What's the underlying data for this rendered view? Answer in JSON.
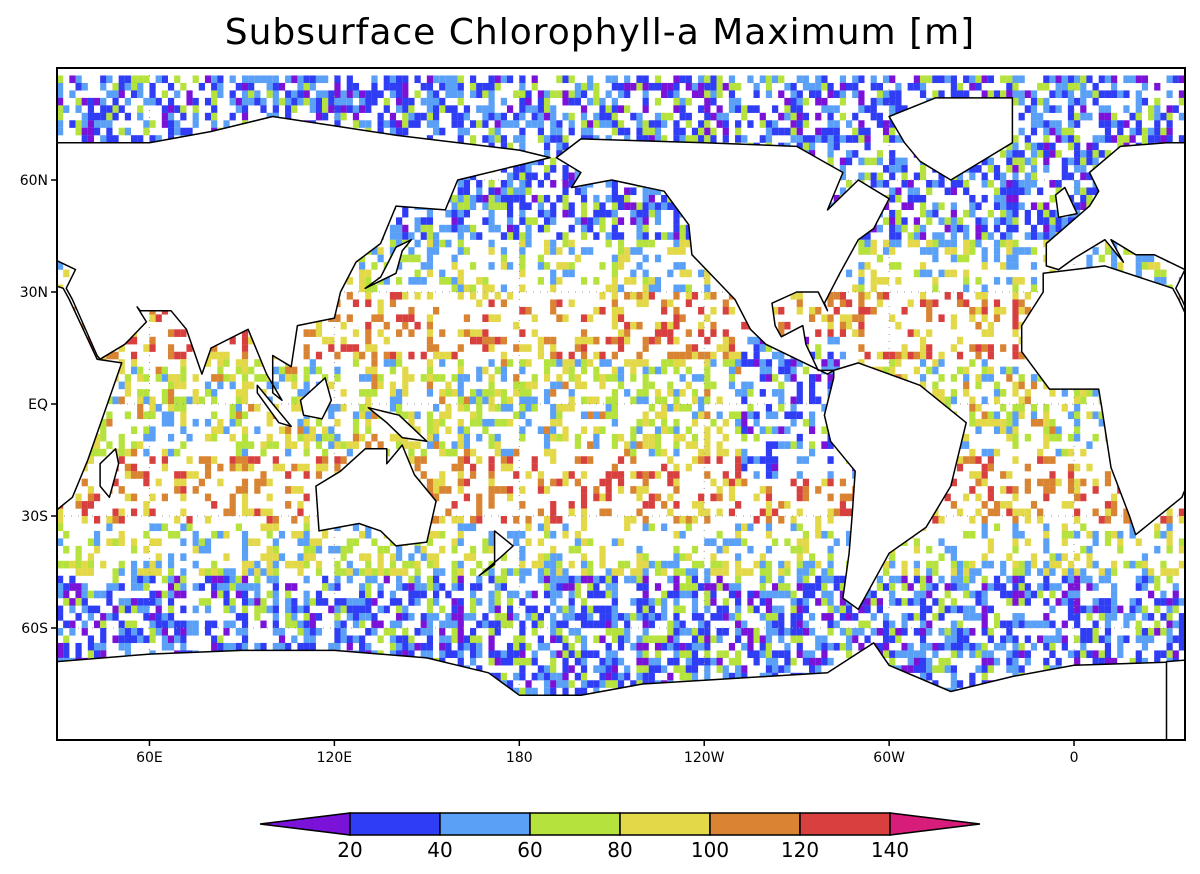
{
  "chart_data": {
    "type": "heatmap",
    "title": "Subsurface Chlorophyll-a Maximum [m]",
    "projection": "cylindrical equidistant, centered on Pacific",
    "lon_range": [
      30,
      396
    ],
    "lat_range": [
      -90,
      90
    ],
    "grid": true,
    "x_ticks": [
      {
        "lon": 60,
        "label": "60E"
      },
      {
        "lon": 120,
        "label": "120E"
      },
      {
        "lon": 180,
        "label": "180"
      },
      {
        "lon": 240,
        "label": "120W"
      },
      {
        "lon": 300,
        "label": "60W"
      },
      {
        "lon": 360,
        "label": "0"
      }
    ],
    "y_ticks": [
      {
        "lat": 60,
        "label": "60N"
      },
      {
        "lat": 30,
        "label": "30N"
      },
      {
        "lat": 0,
        "label": "EQ"
      },
      {
        "lat": -30,
        "label": "30S"
      },
      {
        "lat": -60,
        "label": "60S"
      }
    ],
    "colorbar": {
      "placement": "bottom",
      "levels": [
        20,
        40,
        60,
        80,
        100,
        120,
        140
      ],
      "labels": [
        "20",
        "40",
        "60",
        "80",
        "100",
        "120",
        "140"
      ],
      "colors": [
        "#7a12d8",
        "#2f3df5",
        "#5aa0f7",
        "#b5e23c",
        "#e2d848",
        "#d88432",
        "#d84040",
        "#d81c7a"
      ],
      "extend": "both"
    }
  }
}
